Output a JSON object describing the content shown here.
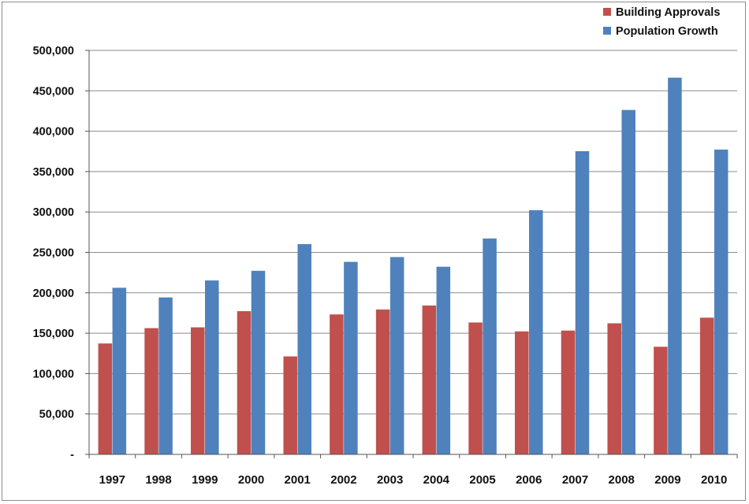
{
  "chart_data": {
    "type": "bar",
    "title": "",
    "xlabel": "",
    "ylabel": "",
    "categories": [
      "1997",
      "1998",
      "1999",
      "2000",
      "2001",
      "2002",
      "2003",
      "2004",
      "2005",
      "2006",
      "2007",
      "2008",
      "2009",
      "2010"
    ],
    "series": [
      {
        "name": "Building Approvals",
        "color": "#c0504d",
        "values": [
          137000,
          156000,
          157000,
          177000,
          121000,
          173000,
          179000,
          184000,
          163000,
          152000,
          153000,
          162000,
          133000,
          169000
        ]
      },
      {
        "name": "Population Growth",
        "color": "#4f81bd",
        "values": [
          206000,
          194000,
          215000,
          227000,
          260000,
          238000,
          244000,
          232000,
          267000,
          302000,
          375000,
          426000,
          466000,
          377000
        ]
      }
    ],
    "ylim": [
      0,
      500000
    ],
    "yticks": [
      0,
      50000,
      100000,
      150000,
      200000,
      250000,
      300000,
      350000,
      400000,
      450000,
      500000
    ],
    "ytick_labels": [
      "-",
      "50,000",
      "100,000",
      "150,000",
      "200,000",
      "250,000",
      "300,000",
      "350,000",
      "400,000",
      "450,000",
      "500,000"
    ],
    "grid": true,
    "legend_position": "top-right"
  }
}
